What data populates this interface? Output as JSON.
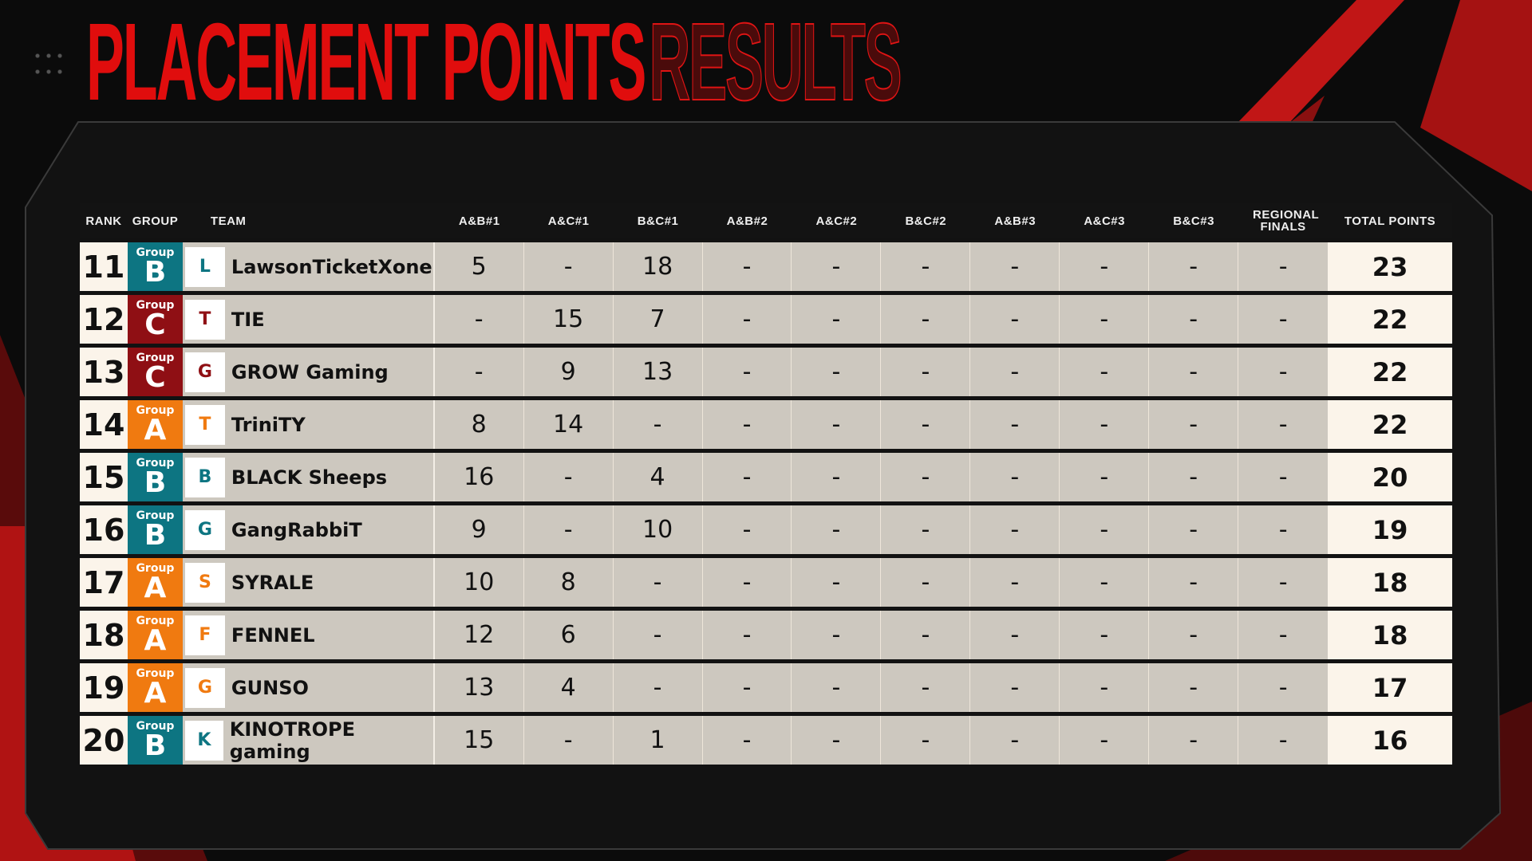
{
  "title": {
    "main": "PLACEMENT POINTS",
    "outline": "RESULTS"
  },
  "colors": {
    "group_A": "#f07a10",
    "group_B": "#0d7582",
    "group_C": "#8f0f14",
    "accent": "#d01010"
  },
  "columns": [
    "RANK",
    "GROUP",
    "TEAM",
    "A&B#1",
    "A&C#1",
    "B&C#1",
    "A&B#2",
    "A&C#2",
    "B&C#2",
    "A&B#3",
    "A&C#3",
    "B&C#3",
    "REGIONAL FINALS",
    "TOTAL POINTS"
  ],
  "group_label": "Group",
  "rows": [
    {
      "rank": "11",
      "group": "B",
      "team": "LawsonTicketXone",
      "logo": "lawson-logo",
      "scores": [
        "5",
        "-",
        "18",
        "-",
        "-",
        "-",
        "-",
        "-",
        "-",
        "-"
      ],
      "total": "23"
    },
    {
      "rank": "12",
      "group": "C",
      "team": "TIE",
      "logo": "tie-logo",
      "scores": [
        "-",
        "15",
        "7",
        "-",
        "-",
        "-",
        "-",
        "-",
        "-",
        "-"
      ],
      "total": "22"
    },
    {
      "rank": "13",
      "group": "C",
      "team": "GROW Gaming",
      "logo": "grow-logo",
      "scores": [
        "-",
        "9",
        "13",
        "-",
        "-",
        "-",
        "-",
        "-",
        "-",
        "-"
      ],
      "total": "22"
    },
    {
      "rank": "14",
      "group": "A",
      "team": "TriniTY",
      "logo": "trinity-logo",
      "scores": [
        "8",
        "14",
        "-",
        "-",
        "-",
        "-",
        "-",
        "-",
        "-",
        "-"
      ],
      "total": "22"
    },
    {
      "rank": "15",
      "group": "B",
      "team": "BLACK Sheeps",
      "logo": "black-sheeps-logo",
      "scores": [
        "16",
        "-",
        "4",
        "-",
        "-",
        "-",
        "-",
        "-",
        "-",
        "-"
      ],
      "total": "20"
    },
    {
      "rank": "16",
      "group": "B",
      "team": "GangRabbiT",
      "logo": "gangrabbit-logo",
      "scores": [
        "9",
        "-",
        "10",
        "-",
        "-",
        "-",
        "-",
        "-",
        "-",
        "-"
      ],
      "total": "19"
    },
    {
      "rank": "17",
      "group": "A",
      "team": "SYRALE",
      "logo": "syrale-logo",
      "scores": [
        "10",
        "8",
        "-",
        "-",
        "-",
        "-",
        "-",
        "-",
        "-",
        "-"
      ],
      "total": "18"
    },
    {
      "rank": "18",
      "group": "A",
      "team": "FENNEL",
      "logo": "fennel-logo",
      "scores": [
        "12",
        "6",
        "-",
        "-",
        "-",
        "-",
        "-",
        "-",
        "-",
        "-"
      ],
      "total": "18"
    },
    {
      "rank": "19",
      "group": "A",
      "team": "GUNSO",
      "logo": "gunso-logo",
      "scores": [
        "13",
        "4",
        "-",
        "-",
        "-",
        "-",
        "-",
        "-",
        "-",
        "-"
      ],
      "total": "17"
    },
    {
      "rank": "20",
      "group": "B",
      "team": "KINOTROPE gaming",
      "logo": "kinotrope-logo",
      "scores": [
        "15",
        "-",
        "1",
        "-",
        "-",
        "-",
        "-",
        "-",
        "-",
        "-"
      ],
      "total": "16"
    }
  ]
}
